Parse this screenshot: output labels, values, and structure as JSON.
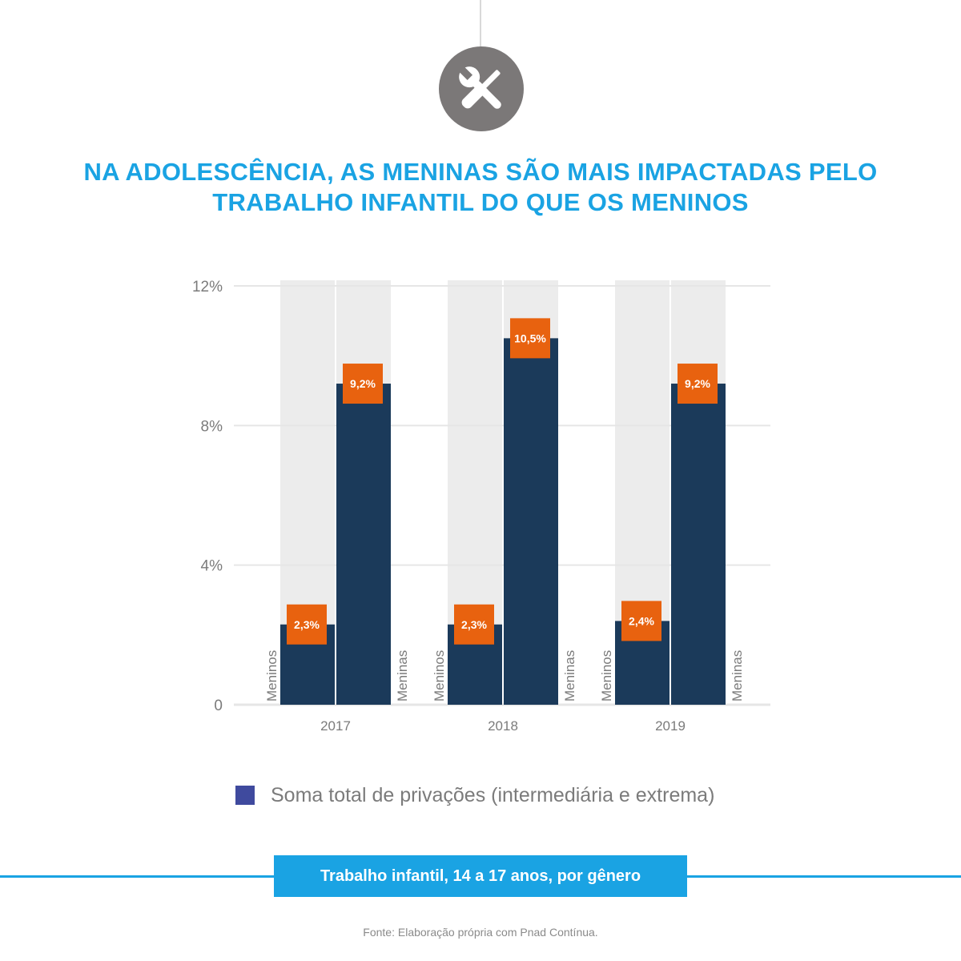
{
  "header": {
    "icon": "tools-icon",
    "title_line1": "NA ADOLESCÊNCIA, AS MENINAS SÃO MAIS IMPACTADAS PELO",
    "title_line2": "TRABALHO INFANTIL DO QUE OS MENINOS"
  },
  "chart_data": {
    "type": "bar",
    "categories": [
      "2017",
      "2018",
      "2019"
    ],
    "bar_labels": [
      "Meninos",
      "Meninas"
    ],
    "series": [
      {
        "name": "Meninos",
        "values": [
          2.3,
          2.3,
          2.4
        ],
        "labels": [
          "2,3%",
          "2,3%",
          "2,4%"
        ]
      },
      {
        "name": "Meninas",
        "values": [
          9.2,
          10.5,
          9.2
        ],
        "labels": [
          "9,2%",
          "10,5%",
          "9,2%"
        ]
      }
    ],
    "y_ticks": [
      {
        "value": 0,
        "label": "0"
      },
      {
        "value": 4,
        "label": "4%"
      },
      {
        "value": 8,
        "label": "8%"
      },
      {
        "value": 12,
        "label": "12%"
      }
    ],
    "ylim": [
      0,
      12
    ],
    "grid": true,
    "colors": {
      "bar": "#1b3a5a",
      "background_column": "#ececec",
      "label_box": "#e8620f",
      "grid": "#e6e6e6"
    }
  },
  "legend": {
    "label": "Soma total de privações (intermediária e extrema)",
    "color": "#3f4a9e"
  },
  "caption": "Trabalho infantil, 14 a 17 anos, por gênero",
  "source": "Fonte: Elaboração própria com Pnad Contínua."
}
